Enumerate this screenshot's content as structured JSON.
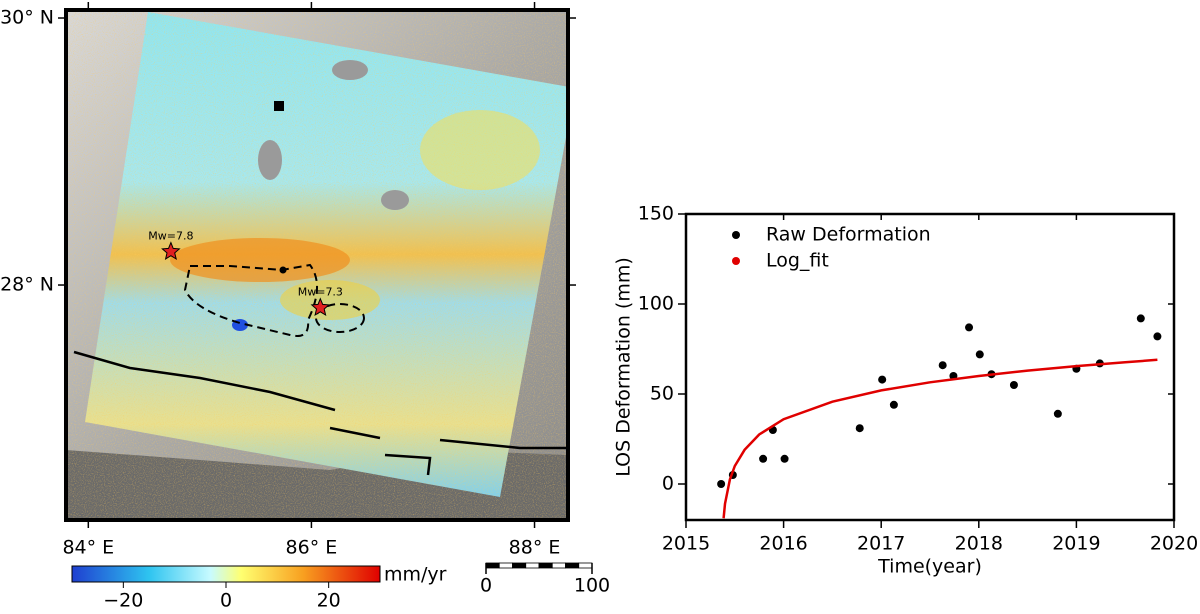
{
  "map": {
    "xlim": [
      83.8,
      88.3
    ],
    "ylim": [
      26.24,
      30.06
    ],
    "xticks": [
      {
        "value": 84,
        "label": "84° E"
      },
      {
        "value": 86,
        "label": "86° E"
      },
      {
        "value": 88,
        "label": "88° E"
      }
    ],
    "yticks": [
      {
        "value": 30,
        "label": "30° N"
      },
      {
        "value": 28,
        "label": "28° N"
      }
    ],
    "epicenters": [
      {
        "label": "Mw=7.8",
        "lon": 84.74,
        "lat": 28.25
      },
      {
        "label": "Mw=7.3",
        "lon": 86.08,
        "lat": 27.83
      }
    ],
    "colorbar": {
      "unit": "mm/yr",
      "lim": [
        -30,
        30
      ],
      "ticks": [
        {
          "value": -20,
          "label": "−20"
        },
        0,
        20
      ]
    },
    "scale_bar": {
      "ticks": [
        0,
        100
      ]
    }
  },
  "chart_data": {
    "type": "scatter",
    "xlabel": "Time(year)",
    "ylabel": "LOS Deformation (mm)",
    "xlim": [
      2015,
      2020
    ],
    "ylim": [
      -20,
      150
    ],
    "xticks": [
      2015,
      2016,
      2017,
      2018,
      2019,
      2020
    ],
    "yticks": [
      0,
      50,
      100,
      150
    ],
    "legend": "upper left",
    "series": [
      {
        "name": "Raw Deformation",
        "color": "#000000",
        "mode": "points",
        "x": [
          2015.36,
          2015.48,
          2015.79,
          2015.89,
          2016.01,
          2016.78,
          2017.01,
          2017.13,
          2017.63,
          2017.74,
          2017.9,
          2018.01,
          2018.13,
          2018.36,
          2018.81,
          2019.0,
          2019.24,
          2019.66,
          2019.83
        ],
        "values": [
          0,
          5,
          14,
          30,
          14,
          31,
          58,
          44,
          66,
          60,
          87,
          72,
          61,
          55,
          39,
          64,
          67,
          92,
          82
        ]
      },
      {
        "name": "Log_fit",
        "color": "#e00000",
        "mode": "line",
        "x": [
          2015.385,
          2015.4,
          2015.45,
          2015.5,
          2015.6,
          2015.75,
          2016,
          2016.5,
          2017,
          2017.5,
          2018,
          2018.5,
          2019,
          2019.5,
          2019.83
        ],
        "values": [
          -19,
          -11,
          2.5,
          10,
          19,
          27.5,
          36,
          45.7,
          52,
          56.5,
          60,
          63,
          65.5,
          67.6,
          69
        ]
      }
    ]
  }
}
